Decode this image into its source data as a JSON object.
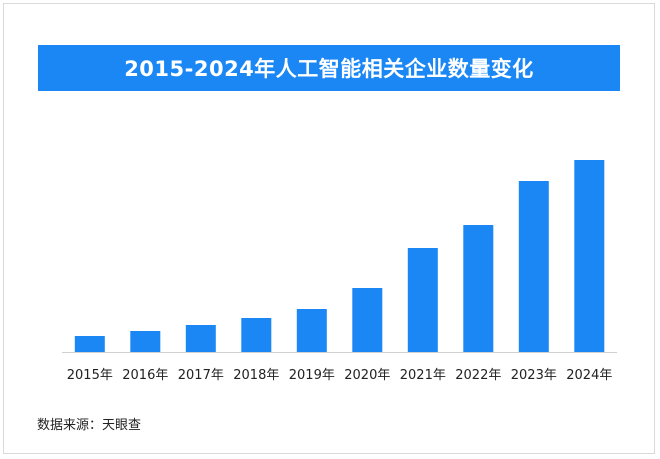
{
  "chart_data": {
    "type": "bar",
    "title": "2015-2024年人工智能相关企业数量变化",
    "categories": [
      "2015年",
      "2016年",
      "2017年",
      "2018年",
      "2019年",
      "2020年",
      "2021年",
      "2022年",
      "2023年",
      "2024年"
    ],
    "values": [
      16,
      21,
      27,
      34,
      43,
      64,
      104,
      127,
      171,
      192
    ],
    "ylim": [
      0,
      200
    ],
    "xlabel": "",
    "ylabel": "",
    "grid": false,
    "bar_color": "#1a87f5"
  },
  "source": "数据来源：天眼查"
}
